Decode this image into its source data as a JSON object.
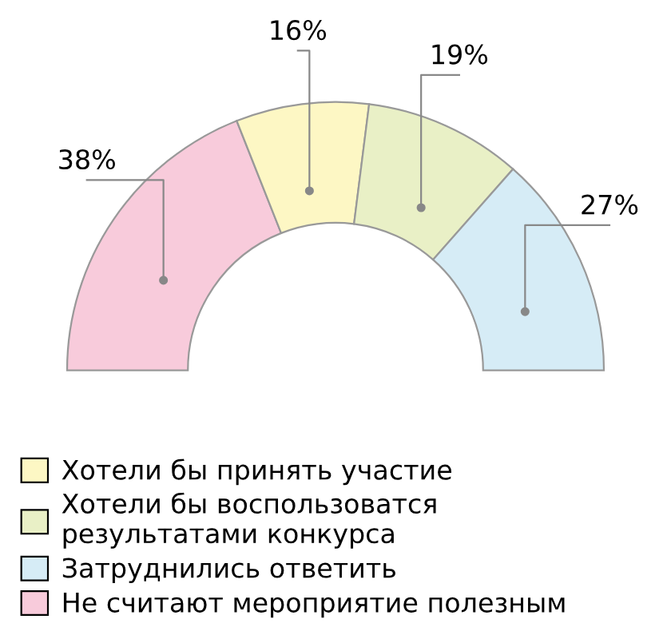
{
  "chart_data": {
    "type": "donut",
    "categories": [
      "Хотели бы принять участие",
      "Хотели бы воспользоватся\nрезультатами конкурса",
      "Затруднились ответить",
      "Не считают мероприятие полезным"
    ],
    "values": [
      16,
      19,
      27,
      38
    ],
    "colors": [
      "#fdf7c4",
      "#e9f0c6",
      "#d6ecf6",
      "#f8cbdb"
    ],
    "value_labels": [
      "16%",
      "19%",
      "27%",
      "38%"
    ],
    "legend": "bottom left"
  }
}
